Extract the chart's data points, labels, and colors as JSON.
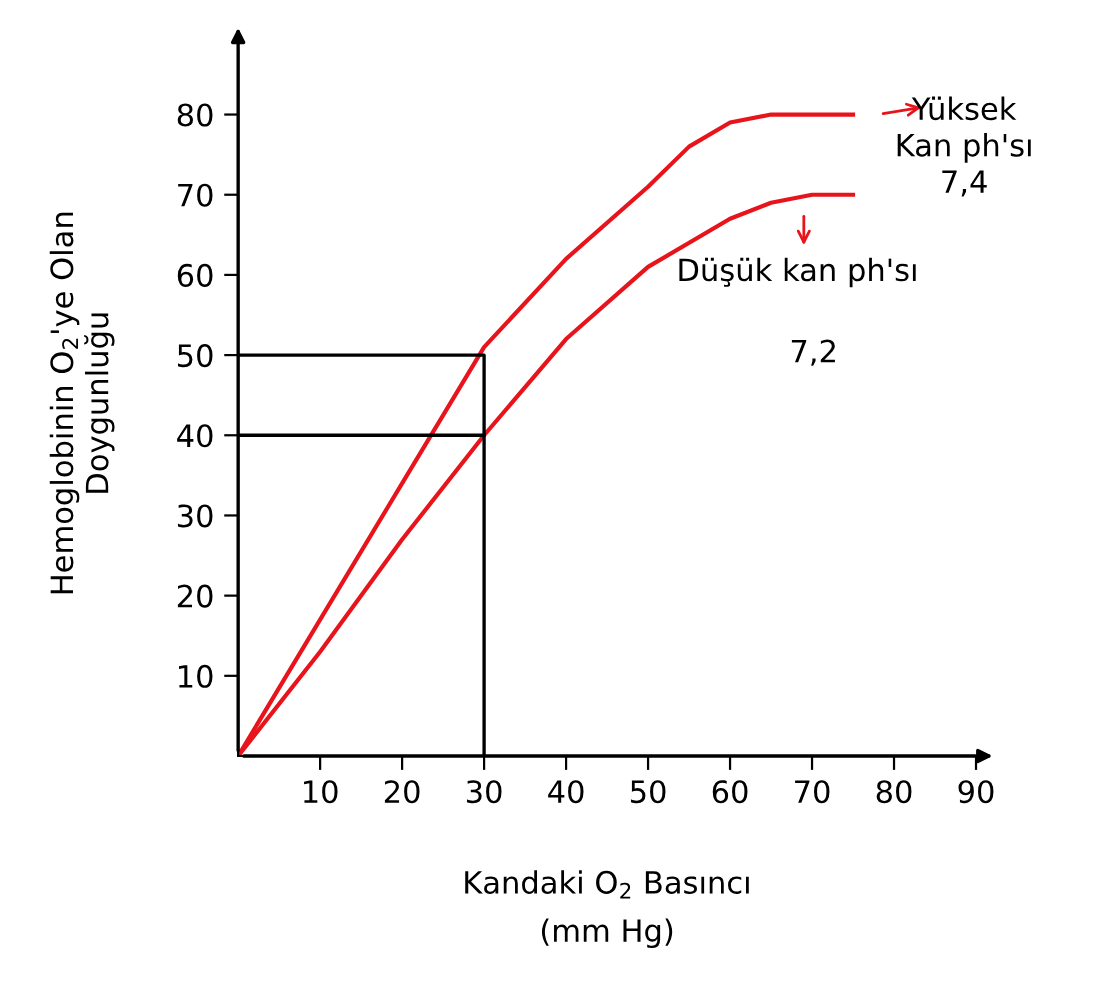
{
  "chart_data": {
    "type": "line",
    "xlabel": "Kandaki O$_{2}$ Basıncı\n(mm Hg)",
    "ylabel": "Hemoglobinin O$_{2}$'ye Olan\nDoygunluğu",
    "xlim": [
      0,
      90
    ],
    "ylim": [
      0,
      88
    ],
    "xticks": [
      10,
      20,
      30,
      40,
      50,
      60,
      70,
      80,
      90
    ],
    "yticks": [
      10,
      20,
      30,
      40,
      50,
      60,
      70,
      80
    ],
    "grid": false,
    "legend": false,
    "marker": "none",
    "line_style": "solid",
    "series": [
      {
        "color": "#e8141c",
        "x": [
          0,
          10,
          20,
          30,
          40,
          50,
          55,
          60,
          65,
          70,
          75
        ],
        "values": [
          0,
          17,
          34,
          51,
          62,
          71,
          76,
          79,
          80,
          80,
          80
        ]
      },
      {
        "color": "#e8141c",
        "x": [
          0,
          10,
          20,
          30,
          40,
          50,
          60,
          65,
          70,
          75
        ],
        "values": [
          0,
          13,
          27,
          40,
          52,
          61,
          67,
          69,
          70,
          70
        ]
      },
      {
        "color": "#000000",
        "x": [
          0,
          30,
          30
        ],
        "values": [
          50,
          50,
          0
        ]
      },
      {
        "color": "#000000",
        "x": [
          0,
          30
        ],
        "values": [
          40,
          40
        ]
      }
    ],
    "annotations": [
      {
        "text": "Yüksek\nKan ph'sı\n7,4",
        "x": 75,
        "y": 80
      },
      {
        "text": "Düşük kan ph'sı",
        "x": 75,
        "y": 70
      },
      "7,2"
    ]
  }
}
